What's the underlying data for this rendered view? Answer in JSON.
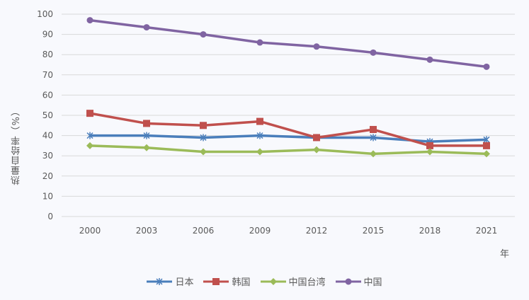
{
  "chart_data": {
    "type": "line",
    "title": "",
    "xlabel": "年",
    "ylabel": "热量自给率（%）",
    "ylim": [
      0,
      100
    ],
    "yticks": [
      0,
      10,
      20,
      30,
      40,
      50,
      60,
      70,
      80,
      90,
      100
    ],
    "categories": [
      "2000",
      "2003",
      "2006",
      "2009",
      "2012",
      "2015",
      "2018",
      "2021"
    ],
    "grid": true,
    "legend_position": "bottom",
    "series": [
      {
        "name": "日本",
        "color": "#4a7ebb",
        "marker": "asterisk",
        "values": [
          40,
          40,
          39,
          40,
          39,
          39,
          37,
          38
        ]
      },
      {
        "name": "韩国",
        "color": "#c0504d",
        "marker": "square",
        "values": [
          51,
          46,
          45,
          47,
          39,
          43,
          35,
          35
        ]
      },
      {
        "name": "中国台湾",
        "color": "#9bbb59",
        "marker": "diamond",
        "values": [
          35,
          34,
          32,
          32,
          33,
          31,
          32,
          31
        ]
      },
      {
        "name": "中国",
        "color": "#8064a2",
        "marker": "circle",
        "values": [
          97,
          93.5,
          90,
          86,
          84,
          81,
          77.5,
          74
        ]
      }
    ]
  }
}
